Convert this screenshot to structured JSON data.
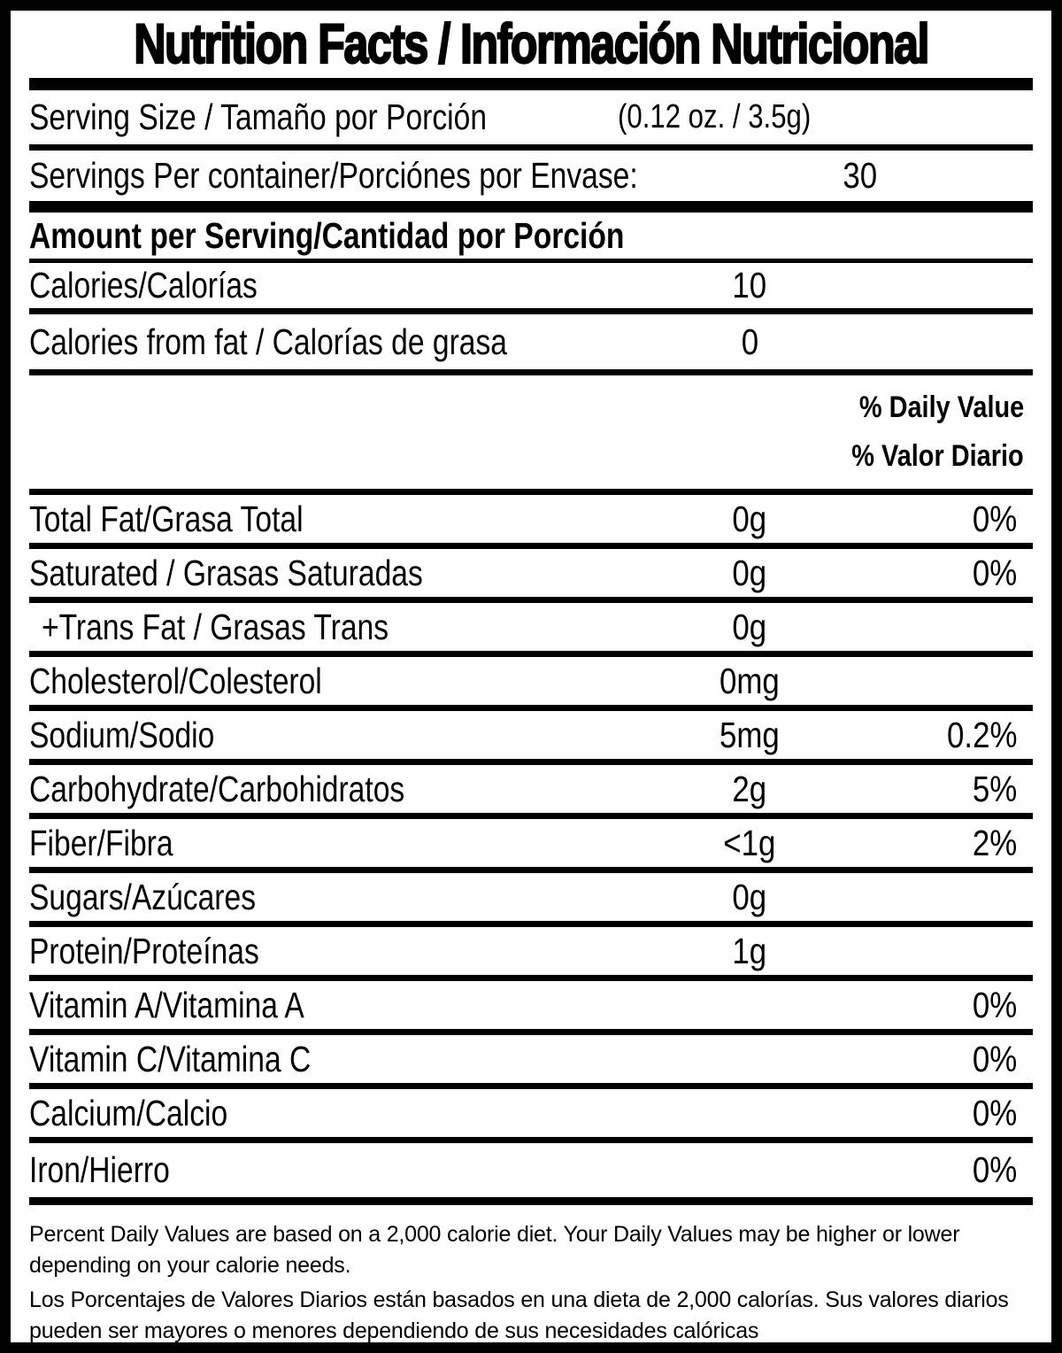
{
  "title": "Nutrition Facts / Información Nutricional",
  "serving": {
    "size_label": "Serving Size / Tamaño por Porción",
    "size_value": "(0.12 oz. / 3.5g)",
    "per_container_label": "Servings Per container/Porciónes por Envase:",
    "per_container_value": "30"
  },
  "amount_heading": "Amount per Serving/Cantidad por Porción",
  "calories": {
    "label": "Calories/Calorías",
    "value": "10"
  },
  "calories_from_fat": {
    "label": "Calories from fat / Calorías de grasa",
    "value": "0"
  },
  "daily_value_heading": {
    "en": "% Daily Value",
    "es": "% Valor Diario"
  },
  "nutrients": [
    {
      "label": "Total Fat/Grasa Total",
      "amount": "0g",
      "dv": "0%"
    },
    {
      "label": "Saturated / Grasas Saturadas",
      "amount": "0g",
      "dv": "0%"
    },
    {
      "label": "+Trans Fat / Grasas Trans",
      "amount": "0g",
      "dv": ""
    },
    {
      "label": "Cholesterol/Colesterol",
      "amount": "0mg",
      "dv": ""
    },
    {
      "label": "Sodium/Sodio",
      "amount": "5mg",
      "dv": "0.2%"
    },
    {
      "label": "Carbohydrate/Carbohidratos",
      "amount": "2g",
      "dv": "5%"
    },
    {
      "label": "Fiber/Fibra",
      "amount": "<1g",
      "dv": "2%"
    },
    {
      "label": "Sugars/Azúcares",
      "amount": "0g",
      "dv": ""
    },
    {
      "label": "Protein/Proteínas",
      "amount": "1g",
      "dv": ""
    },
    {
      "label": "Vitamin A/Vitamina A",
      "amount": "",
      "dv": "0%"
    },
    {
      "label": "Vitamin C/Vitamina C",
      "amount": "",
      "dv": "0%"
    },
    {
      "label": "Calcium/Calcio",
      "amount": "",
      "dv": "0%"
    },
    {
      "label": "Iron/Hierro",
      "amount": "",
      "dv": "0%"
    }
  ],
  "footnotes": {
    "en": "Percent Daily Values are based on a 2,000 calorie diet. Your Daily Values may be higher or lower depending on your calorie needs.",
    "es": "Los Porcentajes de Valores Diarios están basados en una dieta de 2,000 calorías. Sus valores diarios pueden ser mayores o menores dependiendo de sus necesidades calóricas"
  },
  "colors": {
    "ink": "#000000",
    "background": "#ffffff"
  }
}
